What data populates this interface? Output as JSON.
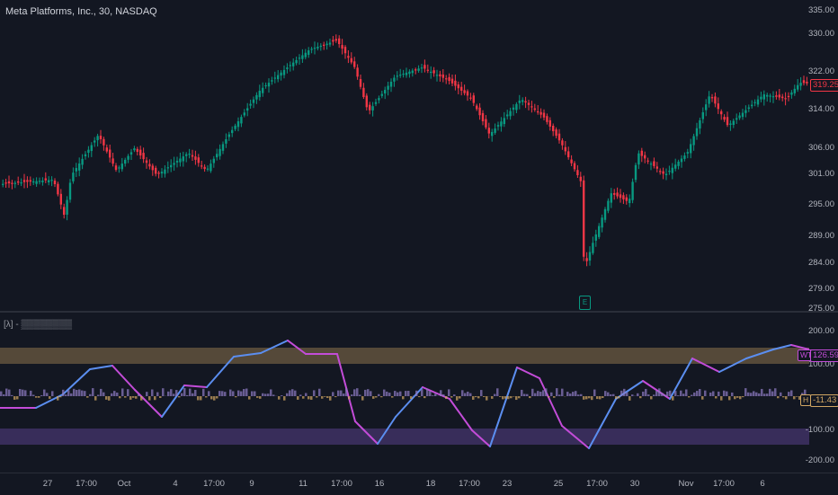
{
  "chart": {
    "title": "Meta Platforms, Inc., 30, NASDAQ",
    "last_price": "319.25",
    "price_ticks": [
      "335.00",
      "330.00",
      "322.00",
      "314.00",
      "306.00",
      "301.00",
      "295.00",
      "289.00",
      "284.00",
      "279.00",
      "275.00"
    ],
    "earnings_marker": "E",
    "colors": {
      "up": "#089981",
      "down": "#f23645",
      "background": "#131722"
    }
  },
  "oscillator": {
    "title": "[λ] - ▒▒▒▒▒▒▒▒",
    "ticks": [
      "200.00",
      "100.00",
      "-100.00",
      "-200.00"
    ],
    "wt_label": "WT",
    "wt_value": "126.59",
    "h_label": "H",
    "h_value": "-11.43",
    "colors": {
      "wt_up": "#5b8ef0",
      "wt_down": "#c34cd8",
      "ob_band": "#d1a663",
      "os_band": "#7e57c2"
    }
  },
  "time_axis": [
    "27",
    "17:00",
    "Oct",
    "4",
    "17:00",
    "9",
    "11",
    "17:00",
    "16",
    "18",
    "17:00",
    "23",
    "25",
    "17:00",
    "30",
    "Nov",
    "17:00",
    "6"
  ]
}
